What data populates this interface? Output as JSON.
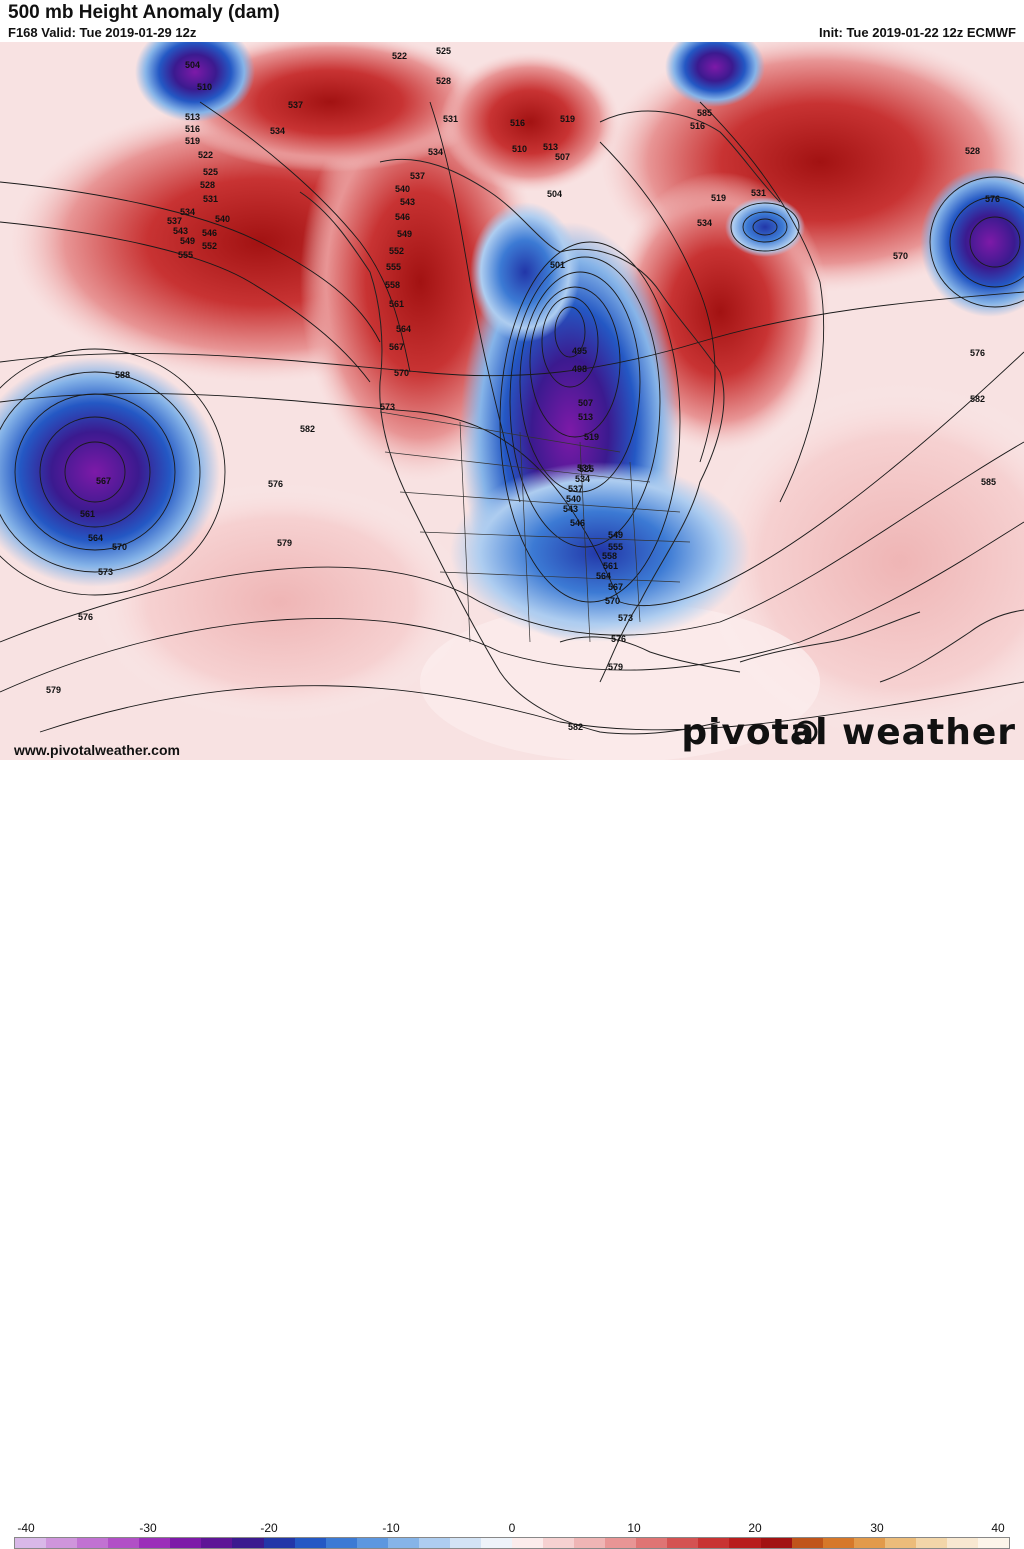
{
  "header": {
    "title": "500 mb Height Anomaly (dam)",
    "valid": "F168 Valid: Tue 2019-01-29 12z",
    "init": "Init: Tue 2019-01-22 12z ECMWF"
  },
  "footer": {
    "website": "www.pivotalweather.com",
    "brand": "pivotal weather"
  },
  "colorbar": {
    "ticks": [
      "-40",
      "-30",
      "-20",
      "-10",
      "0",
      "10",
      "20",
      "30",
      "40"
    ],
    "min": -40,
    "max": 40,
    "colors": [
      "#d9b8e8",
      "#cf95dc",
      "#c172d2",
      "#b150c6",
      "#9b2fb9",
      "#7d1aa8",
      "#5e1596",
      "#3b1a8f",
      "#2236a8",
      "#2458c4",
      "#3c7ad4",
      "#5d97df",
      "#86b4e8",
      "#aecdf0",
      "#d3e3f5",
      "#eef3fa",
      "#fbecec",
      "#f6d1d1",
      "#efb5b5",
      "#e89595",
      "#df7474",
      "#d45252",
      "#c83333",
      "#b81d1d",
      "#a21212",
      "#c0541a",
      "#d6782a",
      "#e29a4b",
      "#ecbc7a",
      "#f3d6a9",
      "#f8e8d1",
      "#fcf5ea"
    ]
  },
  "map": {
    "anomaly_features": [
      {
        "type": "low",
        "region": "eastern Pacific",
        "anomaly": "strong negative"
      },
      {
        "type": "low",
        "region": "Great Lakes / Hudson Bay",
        "anomaly": "very strong negative"
      },
      {
        "type": "low",
        "region": "Labrador Sea",
        "anomaly": "negative"
      },
      {
        "type": "low",
        "region": "mid-Atlantic",
        "anomaly": "strong negative"
      },
      {
        "type": "ridge",
        "region": "western North America",
        "anomaly": "strong positive"
      },
      {
        "type": "ridge",
        "region": "Greenland / North Atlantic",
        "anomaly": "strong positive"
      }
    ],
    "contour_labels": [
      "504",
      "510",
      "513",
      "516",
      "519",
      "522",
      "525",
      "528",
      "531",
      "534",
      "537",
      "540",
      "543",
      "546",
      "549",
      "552",
      "555",
      "522",
      "525",
      "528",
      "531",
      "534",
      "537",
      "534",
      "537",
      "540",
      "543",
      "546",
      "549",
      "552",
      "555",
      "558",
      "561",
      "564",
      "567",
      "570",
      "573",
      "516",
      "513",
      "510",
      "507",
      "504",
      "519",
      "501",
      "495",
      "498",
      "507",
      "513",
      "519",
      "525",
      "531",
      "534",
      "537",
      "540",
      "543",
      "546",
      "549",
      "555",
      "558",
      "561",
      "564",
      "567",
      "570",
      "573",
      "576",
      "579",
      "582",
      "585",
      "516",
      "519",
      "531",
      "534",
      "528",
      "576",
      "570",
      "576",
      "582",
      "585",
      "588",
      "567",
      "561",
      "564",
      "570",
      "573",
      "576",
      "579",
      "582",
      "576",
      "579",
      "582"
    ]
  }
}
